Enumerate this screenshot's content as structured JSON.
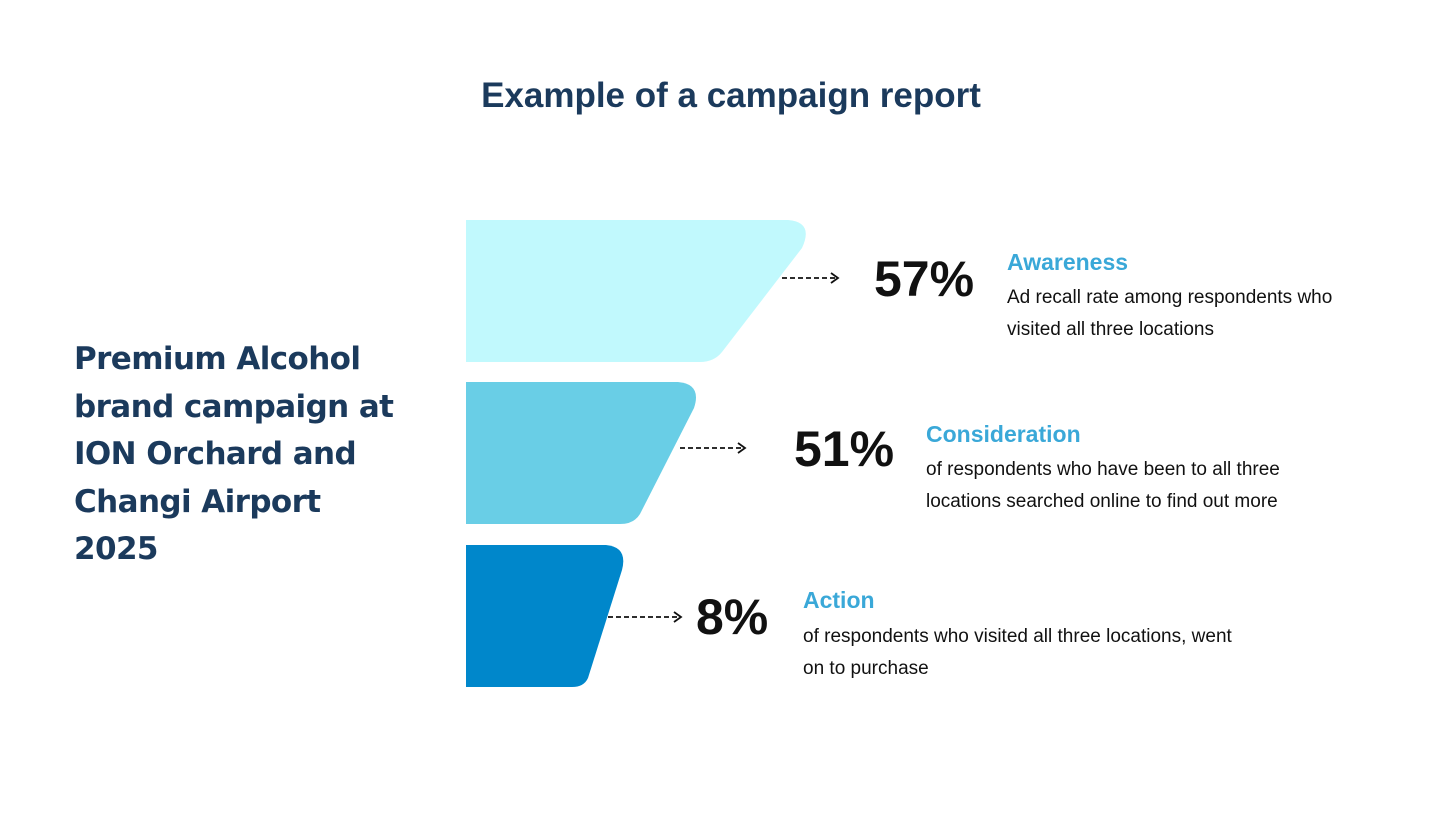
{
  "title": "Example of a campaign report",
  "campaign": "Premium Alcohol brand campaign at ION Orchard and Changi Airport 2025",
  "colors": {
    "awareness": "#c1f9fd",
    "consideration": "#69cee6",
    "action": "#0087cb",
    "label": "#3aa8d8",
    "heading": "#1b3a5c"
  },
  "stages": [
    {
      "percent": "57%",
      "label": "Awareness",
      "description": "Ad recall rate among respondents who visited all three locations"
    },
    {
      "percent": "51%",
      "label": "Consideration",
      "description": "of respondents who have been to all three locations searched online to find out more"
    },
    {
      "percent": "8%",
      "label": "Action",
      "description": "of respondents who visited all three locations, went on to purchase"
    }
  ]
}
